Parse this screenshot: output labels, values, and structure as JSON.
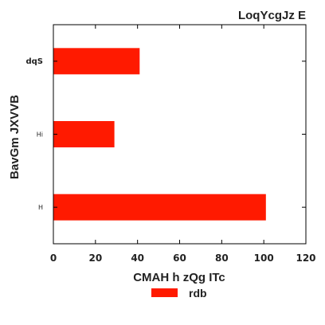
{
  "chart_data": {
    "type": "bar",
    "orientation": "horizontal",
    "title": "LoqYcgJz  E",
    "xlabel": "CMAH h zQg ITc",
    "ylabel": "BavGm JXVVB",
    "categories": [
      "dqS",
      "Hi",
      "H"
    ],
    "series": [
      {
        "name": "rdb",
        "values": [
          41,
          29,
          101
        ],
        "color": "#ff1a00"
      }
    ],
    "xlim": [
      0,
      120
    ],
    "xticks": [
      0,
      20,
      40,
      60,
      80,
      100,
      120
    ],
    "grid": false,
    "legend": "bottom-center"
  }
}
